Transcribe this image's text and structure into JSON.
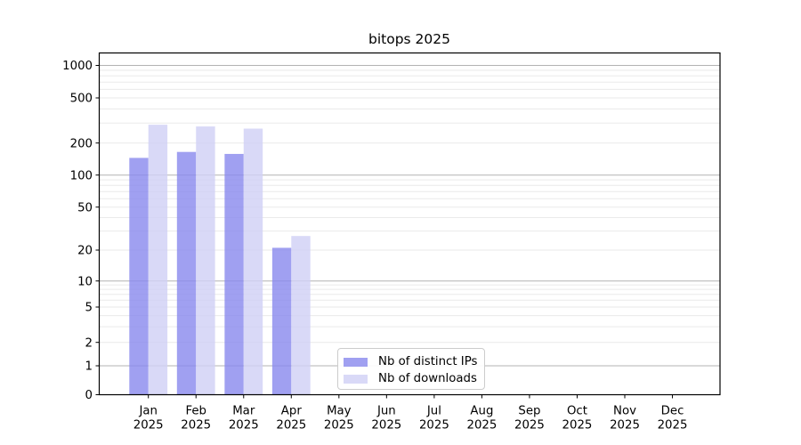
{
  "title": "bitops 2025",
  "chart_data": {
    "type": "bar",
    "title": "bitops 2025",
    "subtitle": "",
    "xlabel": "",
    "ylabel": "",
    "yscale": "symlog",
    "grid": true,
    "legend_position": "lower center inside plot",
    "categories": [
      "Jan",
      "Feb",
      "Mar",
      "Apr",
      "May",
      "Jun",
      "Jul",
      "Aug",
      "Sep",
      "Oct",
      "Nov",
      "Dec"
    ],
    "year_label": "2025",
    "y_ticks": [
      0,
      1,
      2,
      5,
      10,
      20,
      50,
      100,
      200,
      500,
      1000
    ],
    "ylim": [
      0,
      1400
    ],
    "series": [
      {
        "name": "Nb of distinct IPs",
        "key": "distinct-ips",
        "color": "#8888ee",
        "values": [
          145,
          165,
          158,
          21,
          0,
          0,
          0,
          0,
          0,
          0,
          0,
          0
        ]
      },
      {
        "name": "Nb of downloads",
        "key": "downloads",
        "color": "#d0d0f5",
        "values": [
          290,
          280,
          268,
          27,
          0,
          0,
          0,
          0,
          0,
          0,
          0,
          0
        ]
      }
    ],
    "colors": {
      "bar_distinct_ips": "#8888ee",
      "bar_downloads": "#d0d0f5",
      "major_grid": "#b3b3b3",
      "minor_grid": "#eaeaea",
      "axis": "#000000"
    }
  }
}
